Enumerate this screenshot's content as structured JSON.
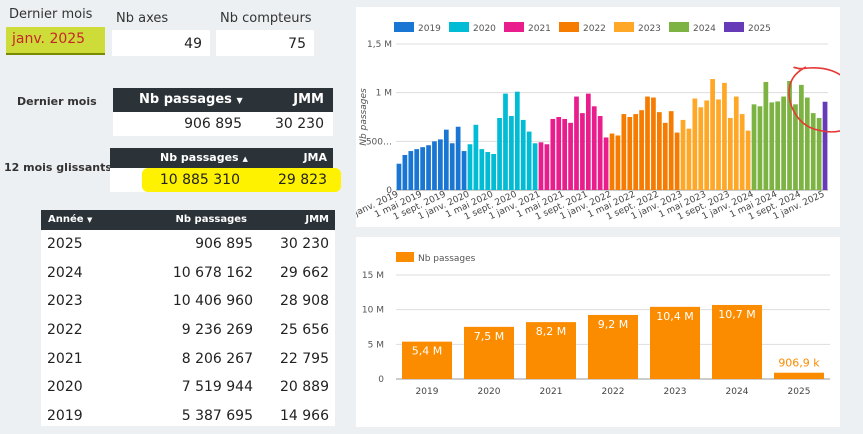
{
  "filters": {
    "last_month_label": "Dernier mois",
    "last_month_value": "janv. 2025",
    "nb_axes_label": "Nb axes",
    "nb_axes_value": "49",
    "nb_counters_label": "Nb compteurs",
    "nb_counters_value": "75"
  },
  "last_month_card": {
    "row_label": "Dernier mois",
    "col_passages": "Nb passages",
    "sort_icon": "sort-down-icon",
    "col_jmm": "JMM",
    "passages": "906 895",
    "jmm": "30 230"
  },
  "rolling_card": {
    "row_label": "12 mois glissants",
    "col_passages": "Nb passages",
    "sort_icon": "sort-up-icon",
    "col_jma": "JMA",
    "passages": "10 885 310",
    "jma": "29 823"
  },
  "year_table": {
    "headers": {
      "year": "Année",
      "passages": "Nb passages",
      "jmm": "JMM"
    },
    "rows": [
      {
        "year": "2025",
        "passages": "906 895",
        "jmm": "30 230"
      },
      {
        "year": "2024",
        "passages": "10 678 162",
        "jmm": "29 662"
      },
      {
        "year": "2023",
        "passages": "10 406 960",
        "jmm": "28 908"
      },
      {
        "year": "2022",
        "passages": "9 236 269",
        "jmm": "25 656"
      },
      {
        "year": "2021",
        "passages": "8 206 267",
        "jmm": "22 795"
      },
      {
        "year": "2020",
        "passages": "7 519 944",
        "jmm": "20 889"
      },
      {
        "year": "2019",
        "passages": "5 387 695",
        "jmm": "14 966"
      }
    ]
  },
  "chart_data": [
    {
      "type": "bar",
      "title": "",
      "ylabel": "Nb passages",
      "ylim": [
        0,
        1500000
      ],
      "yticks": [
        "0",
        "500…",
        "1 M",
        "1,5 M"
      ],
      "ytick_values": [
        0,
        500000,
        1000000,
        1500000
      ],
      "legend": [
        {
          "name": "2019",
          "color": "#1976d2"
        },
        {
          "name": "2020",
          "color": "#00bcd4"
        },
        {
          "name": "2021",
          "color": "#e91e8c"
        },
        {
          "name": "2022",
          "color": "#f57c00"
        },
        {
          "name": "2023",
          "color": "#ffa726"
        },
        {
          "name": "2024",
          "color": "#7cb342"
        },
        {
          "name": "2025",
          "color": "#673ab7"
        }
      ],
      "xtick_labels": [
        "1 janv. 2019",
        "1 mai 2019",
        "1 sept. 2019",
        "1 janv. 2020",
        "1 mai 2020",
        "1 sept. 2020",
        "1 janv. 2021",
        "1 mai 2021",
        "1 sept. 2021",
        "1 janv. 2022",
        "1 mai 2022",
        "1 sept. 2022",
        "1 janv. 2023",
        "1 mai 2023",
        "1 sept. 2023",
        "1 janv. 2024",
        "1 mai 2024",
        "1 sept. 2024",
        "1 janv. 2025"
      ],
      "series": [
        {
          "name": "2019",
          "values": [
            270000,
            360000,
            400000,
            420000,
            440000,
            460000,
            500000,
            520000,
            620000,
            480000,
            650000,
            400000
          ]
        },
        {
          "name": "2020",
          "values": [
            470000,
            670000,
            420000,
            390000,
            370000,
            740000,
            990000,
            760000,
            1010000,
            720000,
            600000,
            480000
          ]
        },
        {
          "name": "2021",
          "values": [
            490000,
            470000,
            730000,
            750000,
            730000,
            690000,
            960000,
            790000,
            990000,
            860000,
            760000,
            540000
          ]
        },
        {
          "name": "2022",
          "values": [
            580000,
            560000,
            780000,
            750000,
            780000,
            820000,
            960000,
            950000,
            800000,
            690000,
            810000,
            590000
          ]
        },
        {
          "name": "2023",
          "values": [
            720000,
            630000,
            940000,
            850000,
            920000,
            1140000,
            930000,
            1100000,
            740000,
            960000,
            780000,
            610000
          ]
        },
        {
          "name": "2024",
          "values": [
            880000,
            860000,
            1110000,
            900000,
            910000,
            960000,
            1120000,
            880000,
            1080000,
            950000,
            790000,
            740000
          ]
        },
        {
          "name": "2025",
          "values": [
            906895
          ]
        }
      ]
    },
    {
      "type": "bar",
      "title": "",
      "legend": [
        {
          "name": "Nb passages",
          "color": "#fb8c00"
        }
      ],
      "ylim": [
        0,
        15000000
      ],
      "yticks": [
        "0",
        "5 M",
        "10 M",
        "15 M"
      ],
      "ytick_values": [
        0,
        5000000,
        10000000,
        15000000
      ],
      "categories": [
        "2019",
        "2020",
        "2021",
        "2022",
        "2023",
        "2024",
        "2025"
      ],
      "values": [
        5387695,
        7519944,
        8206267,
        9236269,
        10406960,
        10678162,
        906895
      ],
      "data_labels": [
        "5,4 M",
        "7,5 M",
        "8,2 M",
        "9,2 M",
        "10,4 M",
        "10,7 M",
        "906,9 k"
      ]
    }
  ]
}
